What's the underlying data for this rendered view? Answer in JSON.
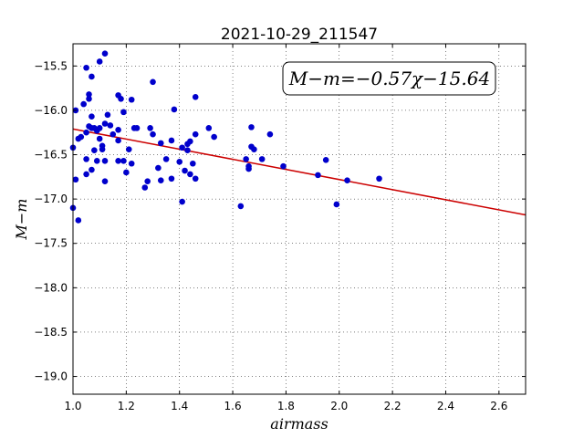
{
  "chart_data": {
    "type": "scatter",
    "title": "2021-10-29_211547",
    "xlabel": "airmass",
    "ylabel": "M−m",
    "annotation": "M−m=−0.57χ−15.64",
    "xlim": [
      1.0,
      2.7
    ],
    "ylim": [
      -19.2,
      -15.25
    ],
    "y_inverted": true,
    "grid": true,
    "x_ticks": [
      1.0,
      1.2,
      1.4,
      1.6,
      1.8,
      2.0,
      2.2,
      2.4,
      2.6
    ],
    "x_tick_labels": [
      "1.0",
      "1.2",
      "1.4",
      "1.6",
      "1.8",
      "2.0",
      "2.2",
      "2.4",
      "2.6"
    ],
    "y_ticks": [
      -15.5,
      -16.0,
      -16.5,
      -17.0,
      -17.5,
      -18.0,
      -18.5,
      -19.0
    ],
    "y_tick_labels": [
      "−15.5",
      "−16.0",
      "−16.5",
      "−17.0",
      "−17.5",
      "−18.0",
      "−18.5",
      "−19.0"
    ],
    "fit": {
      "slope": -0.57,
      "intercept": -15.64,
      "color": "#cc0000"
    },
    "series": [
      {
        "color": "#0000cc",
        "points": [
          [
            1.0,
            -16.42
          ],
          [
            1.0,
            -17.1
          ],
          [
            1.01,
            -16.0
          ],
          [
            1.01,
            -16.78
          ],
          [
            1.02,
            -16.32
          ],
          [
            1.02,
            -17.24
          ],
          [
            1.03,
            -16.3
          ],
          [
            1.04,
            -15.93
          ],
          [
            1.05,
            -16.25
          ],
          [
            1.05,
            -15.52
          ],
          [
            1.05,
            -16.55
          ],
          [
            1.05,
            -16.72
          ],
          [
            1.06,
            -16.18
          ],
          [
            1.06,
            -15.82
          ],
          [
            1.06,
            -15.87
          ],
          [
            1.07,
            -16.07
          ],
          [
            1.07,
            -16.2
          ],
          [
            1.07,
            -16.67
          ],
          [
            1.07,
            -15.62
          ],
          [
            1.08,
            -16.45
          ],
          [
            1.08,
            -16.2
          ],
          [
            1.09,
            -16.57
          ],
          [
            1.09,
            -16.23
          ],
          [
            1.1,
            -16.32
          ],
          [
            1.1,
            -15.45
          ],
          [
            1.1,
            -16.2
          ],
          [
            1.11,
            -16.4
          ],
          [
            1.11,
            -16.44
          ],
          [
            1.12,
            -16.15
          ],
          [
            1.12,
            -16.57
          ],
          [
            1.12,
            -15.36
          ],
          [
            1.12,
            -16.8
          ],
          [
            1.13,
            -16.05
          ],
          [
            1.14,
            -16.17
          ],
          [
            1.15,
            -16.27
          ],
          [
            1.17,
            -16.34
          ],
          [
            1.17,
            -15.83
          ],
          [
            1.17,
            -16.22
          ],
          [
            1.17,
            -16.57
          ],
          [
            1.18,
            -15.87
          ],
          [
            1.19,
            -16.57
          ],
          [
            1.19,
            -16.02
          ],
          [
            1.2,
            -16.7
          ],
          [
            1.21,
            -16.44
          ],
          [
            1.22,
            -15.88
          ],
          [
            1.22,
            -16.6
          ],
          [
            1.23,
            -16.2
          ],
          [
            1.24,
            -16.2
          ],
          [
            1.27,
            -16.87
          ],
          [
            1.28,
            -16.8
          ],
          [
            1.29,
            -16.2
          ],
          [
            1.3,
            -16.27
          ],
          [
            1.3,
            -15.68
          ],
          [
            1.32,
            -16.65
          ],
          [
            1.33,
            -16.37
          ],
          [
            1.33,
            -16.79
          ],
          [
            1.35,
            -16.55
          ],
          [
            1.37,
            -16.34
          ],
          [
            1.37,
            -16.77
          ],
          [
            1.38,
            -15.99
          ],
          [
            1.4,
            -16.58
          ],
          [
            1.41,
            -16.42
          ],
          [
            1.41,
            -17.03
          ],
          [
            1.42,
            -16.68
          ],
          [
            1.43,
            -16.38
          ],
          [
            1.43,
            -16.45
          ],
          [
            1.44,
            -16.72
          ],
          [
            1.44,
            -16.35
          ],
          [
            1.45,
            -16.6
          ],
          [
            1.46,
            -16.27
          ],
          [
            1.46,
            -15.85
          ],
          [
            1.46,
            -16.77
          ],
          [
            1.51,
            -16.2
          ],
          [
            1.53,
            -16.3
          ],
          [
            1.63,
            -17.08
          ],
          [
            1.65,
            -16.55
          ],
          [
            1.66,
            -16.63
          ],
          [
            1.66,
            -16.66
          ],
          [
            1.67,
            -16.41
          ],
          [
            1.67,
            -16.19
          ],
          [
            1.68,
            -16.44
          ],
          [
            1.71,
            -16.55
          ],
          [
            1.74,
            -16.27
          ],
          [
            1.79,
            -16.63
          ],
          [
            1.92,
            -16.73
          ],
          [
            1.95,
            -16.56
          ],
          [
            1.99,
            -17.06
          ],
          [
            2.03,
            -16.79
          ],
          [
            2.15,
            -16.77
          ]
        ]
      }
    ]
  }
}
